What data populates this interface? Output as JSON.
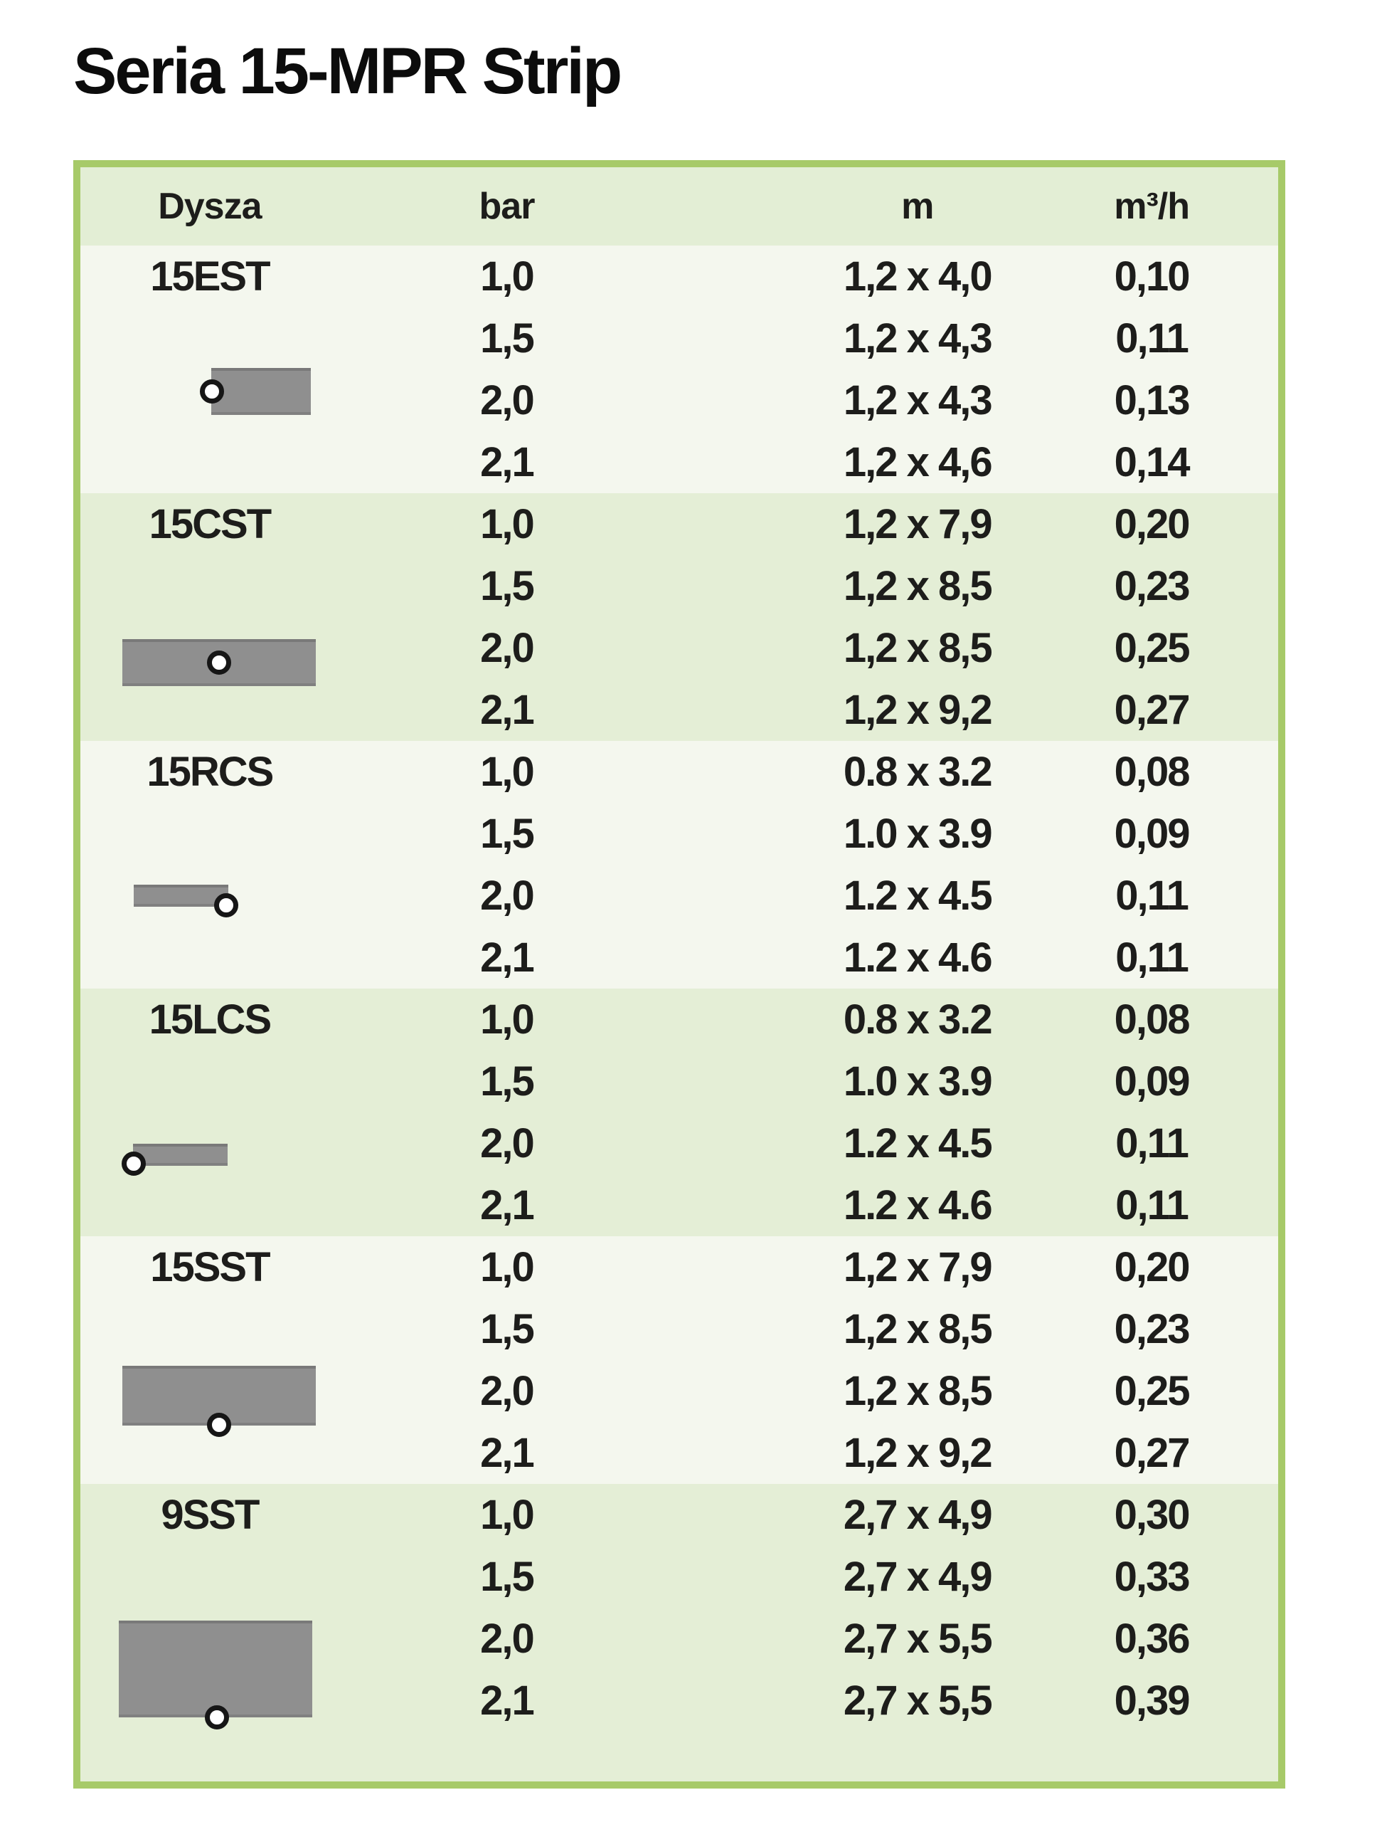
{
  "title": "Seria 15-MPR Strip",
  "colors": {
    "table_border_green": "#a7ca69",
    "band_green": "#e4eed6",
    "band_light": "#f4f7ee",
    "header_band": "#e3eed5",
    "icon_gray": "#8f8f8f",
    "text": "#1d1d1b"
  },
  "table": {
    "headers": {
      "nozzle": "Dysza",
      "pressure": "bar",
      "dimensions": "m",
      "flow": "m³/h"
    },
    "groups": [
      {
        "nozzle": "15EST",
        "icon": "end-strip-spray-right-icon",
        "rows": [
          {
            "bar": "1,0",
            "m": "1,2 x 4,0",
            "flow": "0,10"
          },
          {
            "bar": "1,5",
            "m": "1,2 x 4,3",
            "flow": "0,11"
          },
          {
            "bar": "2,0",
            "m": "1,2 x 4,3",
            "flow": "0,13"
          },
          {
            "bar": "2,1",
            "m": "1,2 x 4,6",
            "flow": "0,14"
          }
        ]
      },
      {
        "nozzle": "15CST",
        "icon": "center-strip-spray-icon",
        "rows": [
          {
            "bar": "1,0",
            "m": "1,2 x 7,9",
            "flow": "0,20"
          },
          {
            "bar": "1,5",
            "m": "1,2 x 8,5",
            "flow": "0,23"
          },
          {
            "bar": "2,0",
            "m": "1,2 x 8,5",
            "flow": "0,25"
          },
          {
            "bar": "2,1",
            "m": "1,2 x 9,2",
            "flow": "0,27"
          }
        ]
      },
      {
        "nozzle": "15RCS",
        "icon": "right-corner-strip-spray-icon",
        "rows": [
          {
            "bar": "1,0",
            "m": "0.8 x 3.2",
            "flow": "0,08"
          },
          {
            "bar": "1,5",
            "m": "1.0 x 3.9",
            "flow": "0,09"
          },
          {
            "bar": "2,0",
            "m": "1.2 x 4.5",
            "flow": "0,11"
          },
          {
            "bar": "2,1",
            "m": "1.2 x 4.6",
            "flow": "0,11"
          }
        ]
      },
      {
        "nozzle": "15LCS",
        "icon": "left-corner-strip-spray-icon",
        "rows": [
          {
            "bar": "1,0",
            "m": "0.8 x 3.2",
            "flow": "0,08"
          },
          {
            "bar": "1,5",
            "m": "1.0 x 3.9",
            "flow": "0,09"
          },
          {
            "bar": "2,0",
            "m": "1.2 x 4.5",
            "flow": "0,11"
          },
          {
            "bar": "2,1",
            "m": "1.2 x 4.6",
            "flow": "0,11"
          }
        ]
      },
      {
        "nozzle": "15SST",
        "icon": "side-strip-spray-icon",
        "rows": [
          {
            "bar": "1,0",
            "m": "1,2 x 7,9",
            "flow": "0,20"
          },
          {
            "bar": "1,5",
            "m": "1,2 x 8,5",
            "flow": "0,23"
          },
          {
            "bar": "2,0",
            "m": "1,2 x 8,5",
            "flow": "0,25"
          },
          {
            "bar": "2,1",
            "m": "1,2 x 9,2",
            "flow": "0,27"
          }
        ]
      },
      {
        "nozzle": "9SST",
        "icon": "wide-side-strip-spray-icon",
        "rows": [
          {
            "bar": "1,0",
            "m": "2,7 x 4,9",
            "flow": "0,30"
          },
          {
            "bar": "1,5",
            "m": "2,7 x 4,9",
            "flow": "0,33"
          },
          {
            "bar": "2,0",
            "m": "2,7 x 5,5",
            "flow": "0,36"
          },
          {
            "bar": "2,1",
            "m": "2,7 x 5,5",
            "flow": "0,39"
          }
        ]
      }
    ]
  }
}
